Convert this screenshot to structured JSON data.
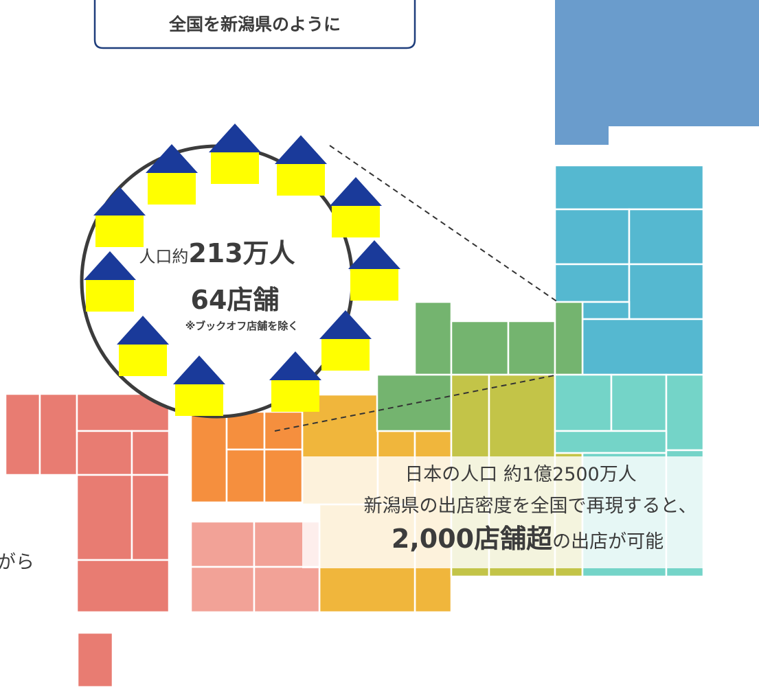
{
  "header": {
    "title": "全国を新潟県のように"
  },
  "circle": {
    "prefix": "人口約",
    "population": "213万人",
    "stores": "64店舗",
    "note": "※ブックオフ店舗を除く"
  },
  "summary": {
    "line1": "日本の人口 約1億2500万人",
    "line2": "新潟県の出店密度を全国で再現すると、",
    "highlight": "2,000店舗超",
    "suffix": "の出店が可能"
  },
  "fragment": "がら"
}
